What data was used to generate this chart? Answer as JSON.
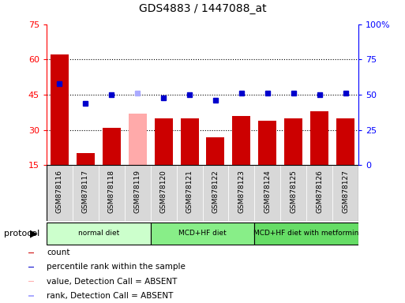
{
  "title": "GDS4883 / 1447088_at",
  "samples": [
    "GSM878116",
    "GSM878117",
    "GSM878118",
    "GSM878119",
    "GSM878120",
    "GSM878121",
    "GSM878122",
    "GSM878123",
    "GSM878124",
    "GSM878125",
    "GSM878126",
    "GSM878127"
  ],
  "count_values": [
    62,
    20,
    31,
    37,
    35,
    35,
    27,
    36,
    34,
    35,
    38,
    35
  ],
  "count_absent": [
    false,
    false,
    false,
    true,
    false,
    false,
    false,
    false,
    false,
    false,
    false,
    false
  ],
  "percentile_values": [
    58,
    44,
    50,
    51,
    48,
    50,
    46,
    51,
    51,
    51,
    50,
    51
  ],
  "percentile_absent": [
    false,
    false,
    false,
    true,
    false,
    false,
    false,
    false,
    false,
    false,
    false,
    false
  ],
  "ylim_left": [
    15,
    75
  ],
  "ylim_right": [
    0,
    100
  ],
  "yticks_left": [
    15,
    30,
    45,
    60,
    75
  ],
  "yticks_right": [
    0,
    25,
    50,
    75,
    100
  ],
  "ytick_labels_right": [
    "0",
    "25",
    "50",
    "75",
    "100%"
  ],
  "bar_color": "#cc0000",
  "bar_absent_color": "#ffaaaa",
  "dot_color": "#0000cc",
  "dot_absent_color": "#aaaaff",
  "protocol_groups": [
    {
      "label": "normal diet",
      "start": 0,
      "end": 3,
      "color": "#ccffcc"
    },
    {
      "label": "MCD+HF diet",
      "start": 4,
      "end": 7,
      "color": "#88ee88"
    },
    {
      "label": "MCD+HF diet with metformin",
      "start": 8,
      "end": 11,
      "color": "#66dd66"
    }
  ],
  "legend_items": [
    {
      "color": "#cc0000",
      "label": "count"
    },
    {
      "color": "#0000cc",
      "label": "percentile rank within the sample"
    },
    {
      "color": "#ffaaaa",
      "label": "value, Detection Call = ABSENT"
    },
    {
      "color": "#aaaaff",
      "label": "rank, Detection Call = ABSENT"
    }
  ],
  "title_fontsize": 10,
  "bar_width": 0.7
}
